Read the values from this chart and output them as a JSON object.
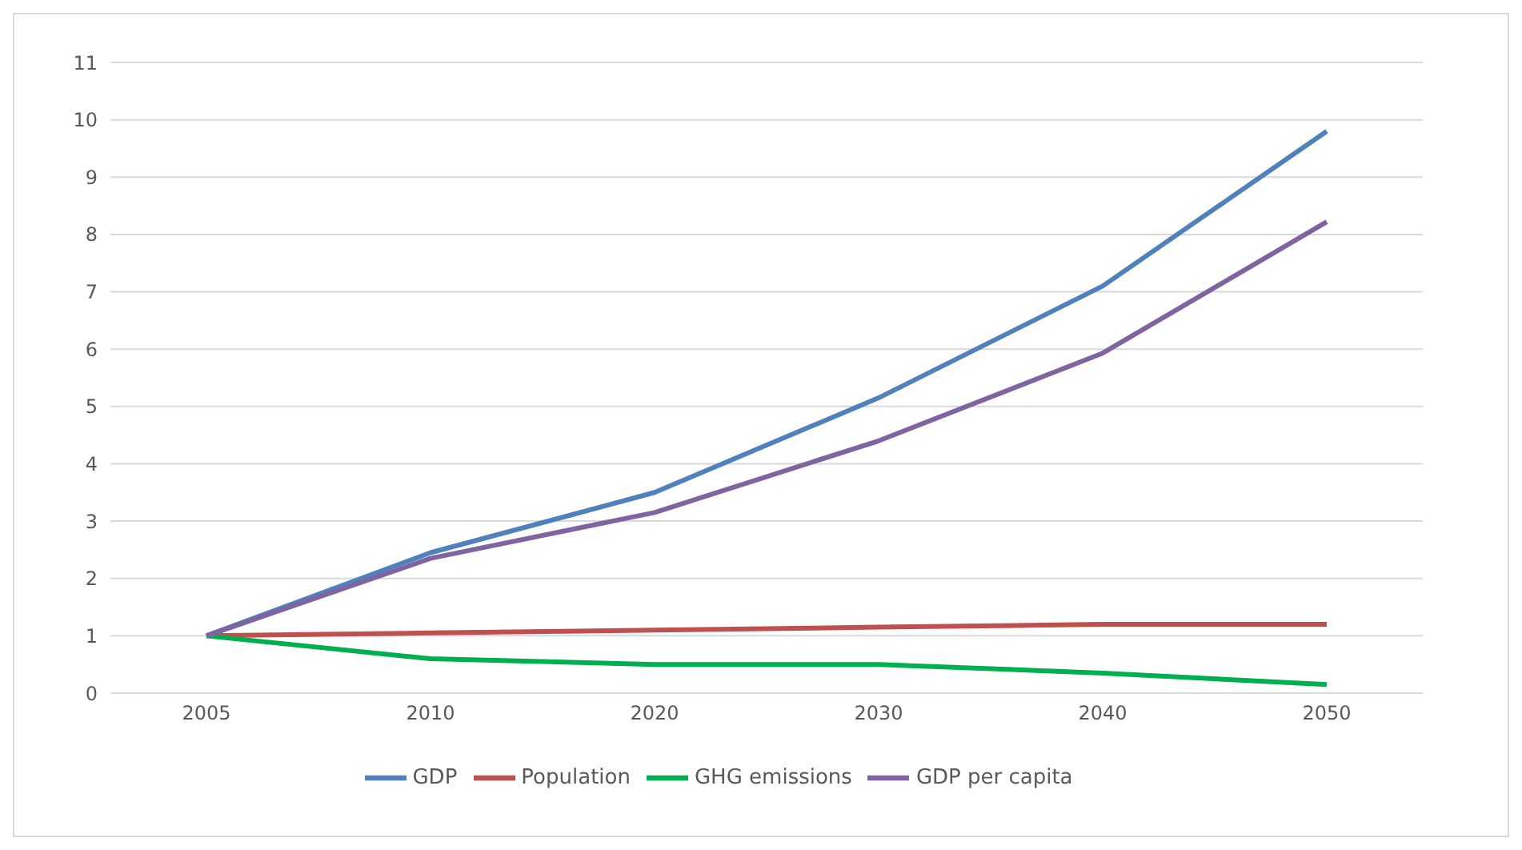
{
  "chart_data": {
    "type": "line",
    "categories": [
      "2005",
      "2010",
      "2020",
      "2030",
      "2040",
      "2050"
    ],
    "series": [
      {
        "name": "GDP",
        "color": "#4f81bd",
        "values": [
          1,
          2.45,
          3.5,
          5.15,
          7.1,
          9.8
        ]
      },
      {
        "name": "Population",
        "color": "#c0504d",
        "values": [
          1,
          1.05,
          1.1,
          1.15,
          1.2,
          1.2
        ]
      },
      {
        "name": "GHG emissions",
        "color": "#00b050",
        "values": [
          1,
          0.6,
          0.5,
          0.5,
          0.35,
          0.15
        ]
      },
      {
        "name": "GDP per capita",
        "color": "#8064a2",
        "values": [
          1,
          2.35,
          3.15,
          4.4,
          5.93,
          8.22
        ]
      }
    ],
    "ylim": [
      0,
      11
    ],
    "yticks": [
      0,
      1,
      2,
      3,
      4,
      5,
      6,
      7,
      8,
      9,
      10,
      11
    ],
    "grid": "y",
    "legend": "bottom",
    "marker": "none",
    "line_style": "solid"
  }
}
